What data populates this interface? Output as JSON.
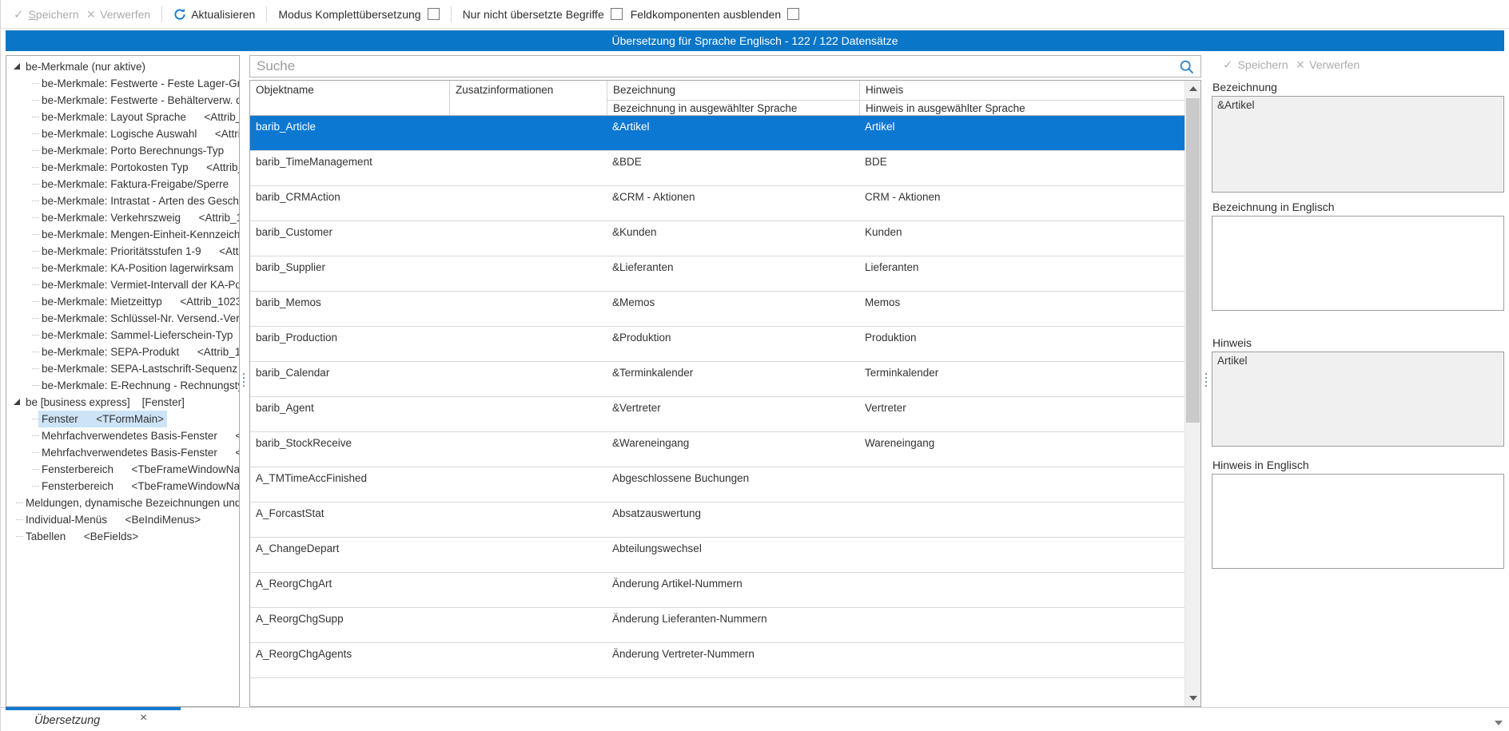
{
  "toolbar": {
    "save_accel": "S",
    "save_rest": "peichern",
    "discard_label": "Verwerfen",
    "refresh_label": "Aktualisieren",
    "checkbox_items": [
      {
        "label": "Modus Komplettübersetzung",
        "checked": false
      },
      {
        "label": "Nur nicht übersetzte Begriffe",
        "checked": false
      },
      {
        "label": "Feldkomponenten ausblenden",
        "checked": false
      }
    ]
  },
  "titlebar": {
    "text": "Übersetzung für Sprache Englisch - 122 / 122 Datensätze"
  },
  "tree": {
    "items": [
      {
        "label": "be-Merkmale (nur aktive)",
        "level": 0,
        "expander": true,
        "selected": false
      },
      {
        "label": "be-Merkmale: Festwerte - Feste Lager-Grö",
        "level": 1,
        "expander": false,
        "selected": false
      },
      {
        "label": "be-Merkmale: Festwerte - Behälterverw. de",
        "level": 1,
        "expander": false,
        "selected": false
      },
      {
        "label": "be-Merkmale: Layout Sprache      <Attrib_N",
        "level": 1,
        "expander": false,
        "selected": false
      },
      {
        "label": "be-Merkmale: Logische Auswahl      <Attrib",
        "level": 1,
        "expander": false,
        "selected": false
      },
      {
        "label": "be-Merkmale: Porto Berechnungs-Typ      <",
        "level": 1,
        "expander": false,
        "selected": false
      },
      {
        "label": "be-Merkmale: Portokosten Typ      <Attrib_",
        "level": 1,
        "expander": false,
        "selected": false
      },
      {
        "label": "be-Merkmale: Faktura-Freigabe/Sperre",
        "level": 1,
        "expander": false,
        "selected": false
      },
      {
        "label": "be-Merkmale: Intrastat - Arten des Geschä",
        "level": 1,
        "expander": false,
        "selected": false
      },
      {
        "label": "be-Merkmale: Verkehrszweig      <Attrib_10",
        "level": 1,
        "expander": false,
        "selected": false
      },
      {
        "label": "be-Merkmale: Mengen-Einheit-Kennzeiche",
        "level": 1,
        "expander": false,
        "selected": false
      },
      {
        "label": "be-Merkmale: Prioritätsstufen 1-9      <Attr",
        "level": 1,
        "expander": false,
        "selected": false
      },
      {
        "label": "be-Merkmale: KA-Position lagerwirksam",
        "level": 1,
        "expander": false,
        "selected": false
      },
      {
        "label": "be-Merkmale: Vermiet-Intervall der KA-Po:",
        "level": 1,
        "expander": false,
        "selected": false
      },
      {
        "label": "be-Merkmale: Mietzeittyp      <Attrib_1023",
        "level": 1,
        "expander": false,
        "selected": false
      },
      {
        "label": "be-Merkmale: Schlüssel-Nr. Versend.-Verf",
        "level": 1,
        "expander": false,
        "selected": false
      },
      {
        "label": "be-Merkmale: Sammel-Lieferschein-Typ",
        "level": 1,
        "expander": false,
        "selected": false
      },
      {
        "label": "be-Merkmale: SEPA-Produkt      <Attrib_10.",
        "level": 1,
        "expander": false,
        "selected": false
      },
      {
        "label": "be-Merkmale: SEPA-Lastschrift-Sequenz",
        "level": 1,
        "expander": false,
        "selected": false
      },
      {
        "label": "be-Merkmale: E-Rechnung - Rechnungstyp",
        "level": 1,
        "expander": false,
        "selected": false
      },
      {
        "label": "be [business express]    [Fenster]",
        "level": 0,
        "expander": true,
        "selected": false
      },
      {
        "label": "Fenster      <TFormMain>",
        "level": 1,
        "expander": false,
        "selected": true
      },
      {
        "label": "Mehrfachverwendetes Basis-Fenster      <Tl",
        "level": 1,
        "expander": false,
        "selected": false
      },
      {
        "label": "Mehrfachverwendetes Basis-Fenster      <Tl",
        "level": 1,
        "expander": false,
        "selected": false
      },
      {
        "label": "Fensterbereich      <TbeFrameWindowNavi",
        "level": 1,
        "expander": false,
        "selected": false
      },
      {
        "label": "Fensterbereich      <TbeFrameWindowNavi",
        "level": 1,
        "expander": false,
        "selected": false
      },
      {
        "label": "Meldungen, dynamische Bezeichnungen und H",
        "level": 0,
        "expander": false,
        "selected": false
      },
      {
        "label": "Individual-Menüs      <BeIndiMenus>",
        "level": 0,
        "expander": false,
        "selected": false
      },
      {
        "label": "Tabellen      <BeFields>",
        "level": 0,
        "expander": false,
        "selected": false
      }
    ]
  },
  "search": {
    "placeholder": "Suche",
    "value": ""
  },
  "table": {
    "columns": [
      "Objektname",
      "Zusatzinformationen",
      "Bezeichnung",
      "Hinweis"
    ],
    "subcolumns": [
      "",
      "",
      "Bezeichnung in ausgewählter Sprache",
      "Hinweis in ausgewählter Sprache"
    ],
    "rows": [
      {
        "objektname": "barib_Article",
        "zusatzinformationen": "",
        "bezeichnung": "&Artikel",
        "hinweis": "Artikel",
        "selected": true
      },
      {
        "objektname": "barib_TimeManagement",
        "zusatzinformationen": "",
        "bezeichnung": "&BDE",
        "hinweis": "BDE",
        "selected": false
      },
      {
        "objektname": "barib_CRMAction",
        "zusatzinformationen": "",
        "bezeichnung": "&CRM - Aktionen",
        "hinweis": "CRM - Aktionen",
        "selected": false
      },
      {
        "objektname": "barib_Customer",
        "zusatzinformationen": "",
        "bezeichnung": "&Kunden",
        "hinweis": "Kunden",
        "selected": false
      },
      {
        "objektname": "barib_Supplier",
        "zusatzinformationen": "",
        "bezeichnung": "&Lieferanten",
        "hinweis": "Lieferanten",
        "selected": false
      },
      {
        "objektname": "barib_Memos",
        "zusatzinformationen": "",
        "bezeichnung": "&Memos",
        "hinweis": "Memos",
        "selected": false
      },
      {
        "objektname": "barib_Production",
        "zusatzinformationen": "",
        "bezeichnung": "&Produktion",
        "hinweis": "Produktion",
        "selected": false
      },
      {
        "objektname": "barib_Calendar",
        "zusatzinformationen": "",
        "bezeichnung": "&Terminkalender",
        "hinweis": "Terminkalender",
        "selected": false
      },
      {
        "objektname": "barib_Agent",
        "zusatzinformationen": "",
        "bezeichnung": "&Vertreter",
        "hinweis": "Vertreter",
        "selected": false
      },
      {
        "objektname": "barib_StockReceive",
        "zusatzinformationen": "",
        "bezeichnung": "&Wareneingang",
        "hinweis": "Wareneingang",
        "selected": false
      },
      {
        "objektname": "A_TMTimeAccFinished",
        "zusatzinformationen": "",
        "bezeichnung": "Abgeschlossene Buchungen",
        "hinweis": "",
        "selected": false
      },
      {
        "objektname": "A_ForcastStat",
        "zusatzinformationen": "",
        "bezeichnung": "Absatzauswertung",
        "hinweis": "",
        "selected": false
      },
      {
        "objektname": "A_ChangeDepart",
        "zusatzinformationen": "",
        "bezeichnung": "Abteilungswechsel",
        "hinweis": "",
        "selected": false
      },
      {
        "objektname": "A_ReorgChgArt",
        "zusatzinformationen": "",
        "bezeichnung": "Änderung Artikel-Nummern",
        "hinweis": "",
        "selected": false
      },
      {
        "objektname": "A_ReorgChgSupp",
        "zusatzinformationen": "",
        "bezeichnung": "Änderung Lieferanten-Nummern",
        "hinweis": "",
        "selected": false
      },
      {
        "objektname": "A_ReorgChgAgents",
        "zusatzinformationen": "",
        "bezeichnung": "Änderung Vertreter-Nummern",
        "hinweis": "",
        "selected": false
      }
    ]
  },
  "detail": {
    "save_label": "Speichern",
    "discard_label": "Verwerfen",
    "fields": [
      {
        "label": "Bezeichnung",
        "value": "&Artikel",
        "readonly": true
      },
      {
        "label": "Bezeichnung in Englisch",
        "value": "",
        "readonly": false
      },
      {
        "label": "Hinweis",
        "value": "Artikel",
        "readonly": true
      },
      {
        "label": "Hinweis in Englisch",
        "value": "",
        "readonly": false
      }
    ]
  },
  "tabbar": {
    "tab_label": "Übersetzung",
    "close_label": "×"
  },
  "colors": {
    "accent_blue": "#0a76c8",
    "selection_blue": "#0d78d2",
    "tree_selection": "#cde4f7"
  }
}
